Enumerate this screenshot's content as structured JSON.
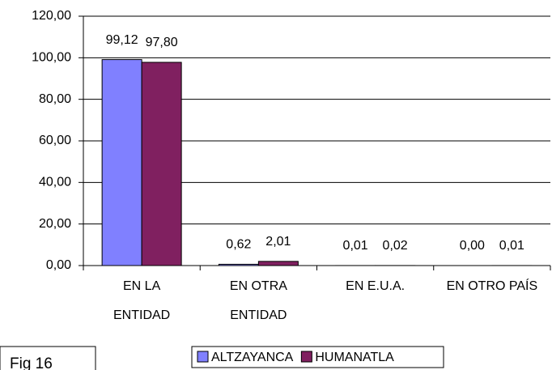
{
  "chart_data": {
    "type": "bar",
    "categories": [
      "EN LA ENTIDAD",
      "EN OTRA ENTIDAD",
      "EN E.U.A.",
      "EN OTRO PAÍS"
    ],
    "series": [
      {
        "name": "ALTZAYANCA",
        "color": "#8080ff",
        "values": [
          99.12,
          0.62,
          0.01,
          0.0
        ],
        "value_labels": [
          "99,12",
          "0,62",
          "0,01",
          "0,00"
        ]
      },
      {
        "name": "HUMANATLA",
        "color": "#802060",
        "values": [
          97.8,
          2.01,
          0.02,
          0.01
        ],
        "value_labels": [
          "97,80",
          "2,01",
          "0,02",
          "0,01"
        ]
      }
    ],
    "ylim": [
      0,
      120
    ],
    "yticks": [
      {
        "value": 0,
        "label": "0,00"
      },
      {
        "value": 20,
        "label": "20,00"
      },
      {
        "value": 40,
        "label": "40,00"
      },
      {
        "value": 60,
        "label": "60,00"
      },
      {
        "value": 80,
        "label": "80,00"
      },
      {
        "value": 100,
        "label": "100,00"
      },
      {
        "value": 120,
        "label": "120,00"
      }
    ],
    "grid": true,
    "legend": "bottom",
    "annotation": "Fig 16"
  }
}
